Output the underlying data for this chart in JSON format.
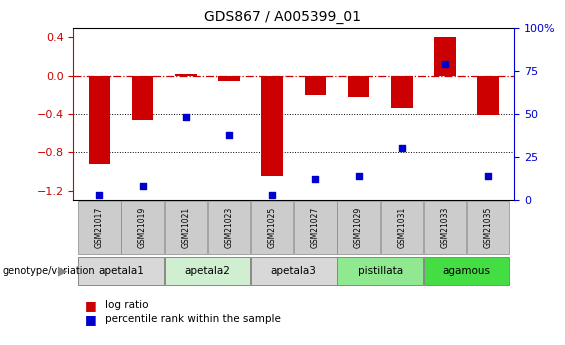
{
  "title": "GDS867 / A005399_01",
  "samples": [
    "GSM21017",
    "GSM21019",
    "GSM21021",
    "GSM21023",
    "GSM21025",
    "GSM21027",
    "GSM21029",
    "GSM21031",
    "GSM21033",
    "GSM21035"
  ],
  "log_ratio": [
    -0.92,
    -0.46,
    0.02,
    -0.06,
    -1.05,
    -0.2,
    -0.22,
    -0.34,
    0.4,
    -0.41
  ],
  "percentile_rank": [
    3,
    8,
    48,
    38,
    3,
    12,
    14,
    30,
    79,
    14
  ],
  "ylim_left": [
    -1.3,
    0.5
  ],
  "ylim_right": [
    0,
    100
  ],
  "yticks_left": [
    -1.2,
    -0.8,
    -0.4,
    0.0,
    0.4
  ],
  "yticks_right": [
    0,
    25,
    50,
    75,
    100
  ],
  "groups": [
    {
      "label": "apetala1",
      "indices": [
        0,
        1
      ],
      "color": "#d8d8d8"
    },
    {
      "label": "apetala2",
      "indices": [
        2,
        3
      ],
      "color": "#d0eed0"
    },
    {
      "label": "apetala3",
      "indices": [
        4,
        5
      ],
      "color": "#d8d8d8"
    },
    {
      "label": "pistillata",
      "indices": [
        6,
        7
      ],
      "color": "#90e890"
    },
    {
      "label": "agamous",
      "indices": [
        8,
        9
      ],
      "color": "#44dd44"
    }
  ],
  "bar_color": "#cc0000",
  "dot_color": "#0000cc",
  "zero_line_color": "#cc0000",
  "grid_color": "#000000",
  "legend_labels": [
    "log ratio",
    "percentile rank within the sample"
  ],
  "legend_colors": [
    "#cc0000",
    "#0000cc"
  ],
  "bar_width": 0.5
}
